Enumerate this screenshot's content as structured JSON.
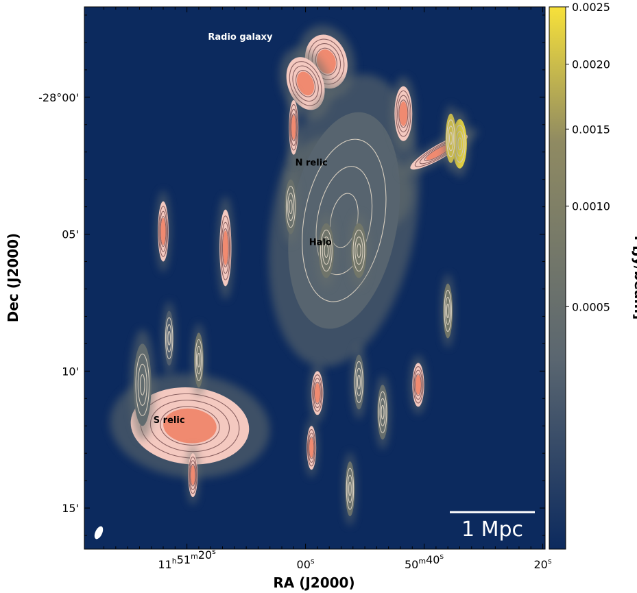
{
  "chart_data": {
    "type": "heatmap",
    "xlabel": "RA (J2000)",
    "ylabel": "Dec (J2000)",
    "x_ticks": [
      {
        "value": 80,
        "parts": [
          [
            "11",
            "h"
          ],
          [
            "51",
            "m"
          ],
          [
            "20",
            "s"
          ]
        ]
      },
      {
        "value": 60,
        "parts": [
          [
            "00",
            "s"
          ]
        ]
      },
      {
        "value": 40,
        "parts": [
          [
            "50",
            "m"
          ],
          [
            "40",
            "s"
          ]
        ]
      },
      {
        "value": 20,
        "parts": [
          [
            "20",
            "s"
          ]
        ]
      }
    ],
    "xlim": [
      97.3,
      19.6
    ],
    "y_ticks": [
      {
        "value": 0,
        "label": "-28°00'"
      },
      {
        "value": 5,
        "label": "05'"
      },
      {
        "value": 10,
        "label": "10'"
      },
      {
        "value": 15,
        "label": "15'"
      }
    ],
    "ylim": [
      16.5,
      -3.3
    ],
    "colorbar": {
      "label": "I [Jy/beam]",
      "ticks": [
        "0.0025",
        "0.0020",
        "0.0015",
        "0.0010",
        "0.0005"
      ],
      "tick_values": [
        0.0025,
        0.002,
        0.0015,
        0.001,
        0.0005
      ],
      "range": [
        0,
        0.0025
      ],
      "colors": [
        "#0c2a5e",
        "#5a6670",
        "#8f8a62",
        "#f7e13a"
      ]
    },
    "annotations": [
      {
        "text": "Radio galaxy",
        "ra_s": 71.0,
        "dec_min": -2.1,
        "color": "#ffffff"
      },
      {
        "text": "N relic",
        "ra_s": 59.0,
        "dec_min": 2.5,
        "color": "#000000"
      },
      {
        "text": "Halo",
        "ra_s": 57.5,
        "dec_min": 5.4,
        "color": "#000000"
      },
      {
        "text": "S relic",
        "ra_s": 83.0,
        "dec_min": 11.9,
        "color": "#000000"
      }
    ],
    "scalebar": {
      "label": "1 Mpc"
    },
    "sources": [
      {
        "name": "radio-galaxy-east",
        "ra_s": 56.5,
        "dec_min": -1.3,
        "peak": 0.003,
        "rx": 3.5,
        "ry": 1.0,
        "angle": -15
      },
      {
        "name": "radio-galaxy-west",
        "ra_s": 60.0,
        "dec_min": -0.5,
        "peak": 0.003,
        "rx": 3.0,
        "ry": 1.0,
        "angle": -20
      },
      {
        "name": "n-relic",
        "ra_s": 52.5,
        "dec_min": 3.2,
        "peak": 0.0012,
        "rx": 8.0,
        "ry": 1.3,
        "angle": 20
      },
      {
        "name": "halo-core",
        "ra_s": 53.5,
        "dec_min": 4.5,
        "peak": 0.0007,
        "rx": 9.0,
        "ry": 4.0,
        "angle": 10
      },
      {
        "name": "halo-left",
        "ra_s": 56.5,
        "dec_min": 5.6,
        "peak": 0.0012,
        "rx": 1.3,
        "ry": 1.0,
        "angle": 0
      },
      {
        "name": "halo-right",
        "ra_s": 51.0,
        "dec_min": 5.6,
        "peak": 0.0013,
        "rx": 1.3,
        "ry": 1.0,
        "angle": 0
      },
      {
        "name": "s-relic",
        "ra_s": 79.5,
        "dec_min": 12.0,
        "peak": 0.003,
        "rx": 10.0,
        "ry": 1.4,
        "angle": 5
      },
      {
        "name": "source-a",
        "ra_s": 87.5,
        "dec_min": 10.5,
        "peak": 0.0009,
        "rx": 1.5,
        "ry": 1.5,
        "angle": 0
      },
      {
        "name": "source-b",
        "ra_s": 43.5,
        "dec_min": 0.6,
        "peak": 0.0028,
        "rx": 1.5,
        "ry": 1.0,
        "angle": 0
      },
      {
        "name": "source-c",
        "ra_s": 37.5,
        "dec_min": 2.0,
        "peak": 0.003,
        "rx": 1.2,
        "ry": 1.2,
        "angle": 60
      },
      {
        "name": "source-d",
        "ra_s": 62.5,
        "dec_min": 4.0,
        "peak": 0.0011,
        "rx": 1.0,
        "ry": 1.0,
        "angle": 0
      },
      {
        "name": "source-e",
        "ra_s": 73.5,
        "dec_min": 5.5,
        "peak": 0.003,
        "rx": 1.0,
        "ry": 1.4,
        "angle": 0
      },
      {
        "name": "source-f",
        "ra_s": 36.0,
        "dec_min": 7.8,
        "peak": 0.0013,
        "rx": 0.8,
        "ry": 1.0,
        "angle": 0
      },
      {
        "name": "source-g",
        "ra_s": 78.0,
        "dec_min": 9.6,
        "peak": 0.0012,
        "rx": 0.8,
        "ry": 1.0,
        "angle": 0
      },
      {
        "name": "source-h",
        "ra_s": 51.0,
        "dec_min": 10.4,
        "peak": 0.0009,
        "rx": 0.9,
        "ry": 1.0,
        "angle": 0
      },
      {
        "name": "source-i",
        "ra_s": 41.0,
        "dec_min": 10.5,
        "peak": 0.003,
        "rx": 1.0,
        "ry": 0.8,
        "angle": 0
      },
      {
        "name": "source-j",
        "ra_s": 58.0,
        "dec_min": 10.8,
        "peak": 0.0028,
        "rx": 1.0,
        "ry": 0.8,
        "angle": 0
      },
      {
        "name": "source-k",
        "ra_s": 59.0,
        "dec_min": 12.8,
        "peak": 0.0028,
        "rx": 0.8,
        "ry": 0.8,
        "angle": 0
      },
      {
        "name": "source-l",
        "ra_s": 52.5,
        "dec_min": 14.3,
        "peak": 0.0011,
        "rx": 0.8,
        "ry": 1.0,
        "angle": 0
      },
      {
        "name": "source-m",
        "ra_s": 84.0,
        "dec_min": 4.9,
        "peak": 0.003,
        "rx": 0.9,
        "ry": 1.1,
        "angle": 0
      },
      {
        "name": "source-n",
        "ra_s": 62.0,
        "dec_min": 1.1,
        "peak": 0.0026,
        "rx": 0.8,
        "ry": 1.0,
        "angle": 0
      },
      {
        "name": "source-o",
        "ra_s": 34.0,
        "dec_min": 1.7,
        "peak": 0.0025,
        "rx": 1.2,
        "ry": 0.9,
        "angle": 0
      },
      {
        "name": "source-p",
        "ra_s": 35.5,
        "dec_min": 1.5,
        "peak": 0.0023,
        "rx": 0.9,
        "ry": 0.9,
        "angle": 0
      },
      {
        "name": "source-q",
        "ra_s": 83.0,
        "dec_min": 8.8,
        "peak": 0.0006,
        "rx": 0.8,
        "ry": 1.0,
        "angle": 0
      },
      {
        "name": "source-r",
        "ra_s": 47.0,
        "dec_min": 11.5,
        "peak": 0.001,
        "rx": 0.9,
        "ry": 1.0,
        "angle": 0
      },
      {
        "name": "source-s",
        "ra_s": 79.0,
        "dec_min": 13.8,
        "peak": 0.0028,
        "rx": 0.8,
        "ry": 0.8,
        "angle": 0
      }
    ]
  }
}
